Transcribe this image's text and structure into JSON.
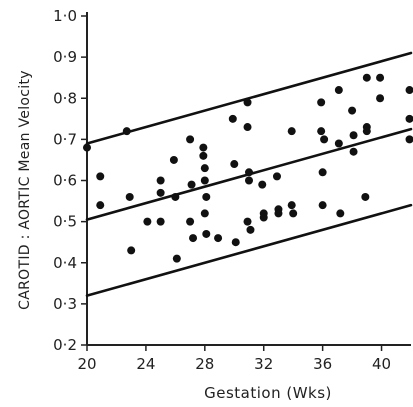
{
  "chart_data": {
    "type": "scatter",
    "title": "",
    "xlabel": "Gestation (Wks)",
    "ylabel": "CAROTID : AORTIC  Mean Velocity",
    "xlim": [
      20,
      42
    ],
    "ylim": [
      0.2,
      1.0
    ],
    "x_ticks": [
      20,
      24,
      28,
      32,
      36,
      40
    ],
    "x_tick_labels": [
      "20",
      "24",
      "28",
      "32",
      "36",
      "40"
    ],
    "y_ticks": [
      0.2,
      0.3,
      0.4,
      0.5,
      0.6,
      0.7,
      0.8,
      0.9,
      1.0
    ],
    "y_tick_labels": [
      "0·2",
      "0·3",
      "0·4",
      "0·5",
      "0·6",
      "0·7",
      "0·8",
      "0·9",
      "1·0"
    ],
    "grid": false,
    "lines": [
      {
        "x": [
          20,
          42
        ],
        "y": [
          0.69,
          0.91
        ]
      },
      {
        "x": [
          20,
          42
        ],
        "y": [
          0.505,
          0.725
        ]
      },
      {
        "x": [
          20,
          42
        ],
        "y": [
          0.32,
          0.54
        ]
      }
    ],
    "points": [
      {
        "x": 20.0,
        "y": 0.68
      },
      {
        "x": 20.9,
        "y": 0.61
      },
      {
        "x": 20.9,
        "y": 0.54
      },
      {
        "x": 22.7,
        "y": 0.72
      },
      {
        "x": 22.9,
        "y": 0.56
      },
      {
        "x": 23.0,
        "y": 0.43
      },
      {
        "x": 24.1,
        "y": 0.5
      },
      {
        "x": 25.0,
        "y": 0.6
      },
      {
        "x": 25.0,
        "y": 0.57
      },
      {
        "x": 25.0,
        "y": 0.5
      },
      {
        "x": 25.9,
        "y": 0.65
      },
      {
        "x": 26.0,
        "y": 0.56
      },
      {
        "x": 26.1,
        "y": 0.41
      },
      {
        "x": 27.0,
        "y": 0.7
      },
      {
        "x": 27.1,
        "y": 0.59
      },
      {
        "x": 27.0,
        "y": 0.5
      },
      {
        "x": 27.2,
        "y": 0.46
      },
      {
        "x": 27.9,
        "y": 0.68
      },
      {
        "x": 27.9,
        "y": 0.66
      },
      {
        "x": 28.0,
        "y": 0.63
      },
      {
        "x": 28.0,
        "y": 0.6
      },
      {
        "x": 28.1,
        "y": 0.56
      },
      {
        "x": 28.0,
        "y": 0.52
      },
      {
        "x": 28.1,
        "y": 0.47
      },
      {
        "x": 28.9,
        "y": 0.46
      },
      {
        "x": 29.9,
        "y": 0.75
      },
      {
        "x": 30.0,
        "y": 0.64
      },
      {
        "x": 30.1,
        "y": 0.45
      },
      {
        "x": 30.9,
        "y": 0.79
      },
      {
        "x": 30.9,
        "y": 0.73
      },
      {
        "x": 31.0,
        "y": 0.62
      },
      {
        "x": 31.0,
        "y": 0.6
      },
      {
        "x": 30.9,
        "y": 0.5
      },
      {
        "x": 31.1,
        "y": 0.48
      },
      {
        "x": 31.9,
        "y": 0.59
      },
      {
        "x": 32.0,
        "y": 0.52
      },
      {
        "x": 32.0,
        "y": 0.51
      },
      {
        "x": 32.9,
        "y": 0.61
      },
      {
        "x": 33.0,
        "y": 0.53
      },
      {
        "x": 33.0,
        "y": 0.52
      },
      {
        "x": 33.9,
        "y": 0.72
      },
      {
        "x": 33.9,
        "y": 0.54
      },
      {
        "x": 34.0,
        "y": 0.52
      },
      {
        "x": 35.9,
        "y": 0.79
      },
      {
        "x": 35.9,
        "y": 0.72
      },
      {
        "x": 36.1,
        "y": 0.7
      },
      {
        "x": 36.0,
        "y": 0.62
      },
      {
        "x": 36.0,
        "y": 0.54
      },
      {
        "x": 37.1,
        "y": 0.82
      },
      {
        "x": 37.1,
        "y": 0.69
      },
      {
        "x": 37.2,
        "y": 0.52
      },
      {
        "x": 38.0,
        "y": 0.77
      },
      {
        "x": 38.1,
        "y": 0.71
      },
      {
        "x": 38.1,
        "y": 0.67
      },
      {
        "x": 39.0,
        "y": 0.85
      },
      {
        "x": 39.0,
        "y": 0.73
      },
      {
        "x": 39.0,
        "y": 0.72
      },
      {
        "x": 38.9,
        "y": 0.56
      },
      {
        "x": 39.9,
        "y": 0.85
      },
      {
        "x": 39.9,
        "y": 0.8
      },
      {
        "x": 41.9,
        "y": 0.82
      },
      {
        "x": 41.9,
        "y": 0.75
      },
      {
        "x": 41.9,
        "y": 0.7
      }
    ]
  }
}
